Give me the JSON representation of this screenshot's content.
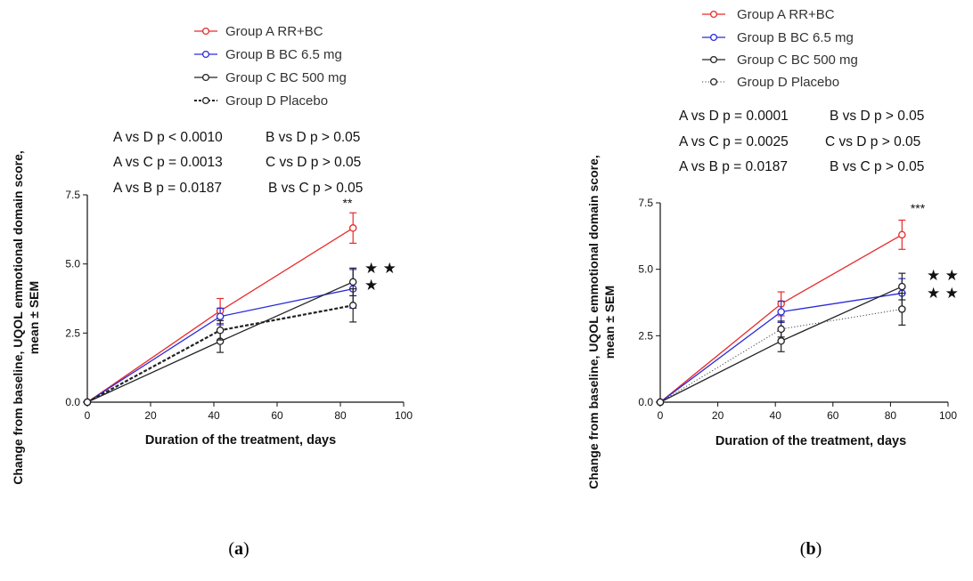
{
  "colors": {
    "A": "#e8292a",
    "B": "#2a2ad8",
    "C": "#222222",
    "D": "#222222"
  },
  "panels": [
    {
      "panel_label": [
        "(",
        "a",
        ")"
      ],
      "legend": [
        "Group A RR+BC",
        "Group B BC 6.5 mg",
        "Group C BC 500 mg",
        "Group D Placebo"
      ],
      "stats": [
        "A vs D p < 0.0010",
        "B vs D p > 0.05",
        "A vs C p = 0.0013",
        "C vs D p > 0.05",
        "A vs B p = 0.0187",
        "B vs C p > 0.05"
      ],
      "significance": "**",
      "stars": [
        "★ ★",
        "★"
      ]
    },
    {
      "panel_label": [
        "(",
        "b",
        ")"
      ],
      "legend": [
        "Group A RR+BC",
        "Group B BC 6.5 mg",
        "Group C BC 500 mg",
        "Group D Placebo"
      ],
      "stats": [
        "A vs D p = 0.0001",
        "B vs D p > 0.05",
        "A vs C p = 0.0025",
        "C vs D p > 0.05",
        "A vs B p = 0.0187",
        "B vs C p > 0.05"
      ],
      "significance": "***",
      "stars": [
        "★ ★",
        "★ ★"
      ]
    }
  ],
  "chart_data": [
    {
      "type": "line",
      "title": "",
      "xlabel": "Duration of the treatment, days",
      "ylabel": [
        "Change from baseline, UQOL emmotional domain score,",
        "mean ± SEM"
      ],
      "xlim": [
        0,
        100
      ],
      "ylim": [
        0,
        7.5
      ],
      "xticks": [
        "0",
        "20",
        "40",
        "60",
        "80",
        "100"
      ],
      "yticks": [
        "0.0",
        "2.5",
        "5.0",
        "7.5"
      ],
      "x": [
        0,
        42,
        84
      ],
      "series": [
        {
          "name": "Group A RR+BC",
          "values": [
            0,
            3.3,
            6.3
          ],
          "sem": [
            0,
            0.45,
            0.55
          ],
          "line": "solid"
        },
        {
          "name": "Group B BC 6.5 mg",
          "values": [
            0,
            3.1,
            4.1
          ],
          "sem": [
            0,
            0.3,
            0.7
          ],
          "line": "solid"
        },
        {
          "name": "Group C BC 500 mg",
          "values": [
            0,
            2.2,
            4.35
          ],
          "sem": [
            0,
            0.4,
            0.5
          ],
          "line": "solid"
        },
        {
          "name": "Group D Placebo",
          "values": [
            0,
            2.6,
            3.5
          ],
          "sem": [
            0,
            0.35,
            0.6
          ],
          "line": "dashed"
        }
      ],
      "grid": false,
      "legend_position": "top"
    },
    {
      "type": "line",
      "title": "",
      "xlabel": "Duration of the treatment, days",
      "ylabel": [
        "Change from baseline, UQOL emmotional domain score,",
        "mean ± SEM"
      ],
      "xlim": [
        0,
        100
      ],
      "ylim": [
        0,
        7.5
      ],
      "xticks": [
        "0",
        "20",
        "40",
        "60",
        "80",
        "100"
      ],
      "yticks": [
        "0.0",
        "2.5",
        "5.0",
        "7.5"
      ],
      "x": [
        0,
        42,
        84
      ],
      "series": [
        {
          "name": "Group A RR+BC",
          "values": [
            0,
            3.7,
            6.3
          ],
          "sem": [
            0,
            0.45,
            0.55
          ],
          "line": "solid"
        },
        {
          "name": "Group B BC 6.5 mg",
          "values": [
            0,
            3.4,
            4.1
          ],
          "sem": [
            0,
            0.4,
            0.55
          ],
          "line": "solid"
        },
        {
          "name": "Group C BC 500 mg",
          "values": [
            0,
            2.3,
            4.35
          ],
          "sem": [
            0,
            0.4,
            0.5
          ],
          "line": "solid"
        },
        {
          "name": "Group D Placebo",
          "values": [
            0,
            2.75,
            3.5
          ],
          "sem": [
            0,
            0.3,
            0.6
          ],
          "line": "dotted"
        }
      ],
      "grid": false,
      "legend_position": "top"
    }
  ]
}
